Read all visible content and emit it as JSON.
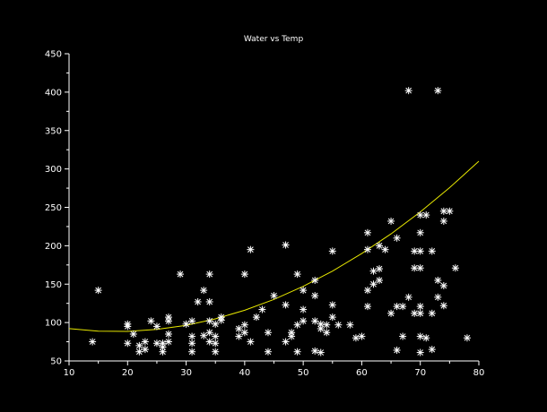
{
  "chart_data": {
    "type": "scatter",
    "title": "Water vs Temp",
    "xlabel": "",
    "ylabel": "",
    "xlim": [
      10,
      80
    ],
    "ylim": [
      50,
      450
    ],
    "xticks": [
      10,
      20,
      30,
      40,
      50,
      60,
      70,
      80
    ],
    "yticks": [
      50,
      100,
      150,
      200,
      250,
      300,
      350,
      400,
      450
    ],
    "grid": false,
    "colors": {
      "background": "#000000",
      "axes": "#ffffff",
      "points": "#ffffff",
      "fit_line": "#e8e800"
    },
    "points": [
      [
        14,
        75
      ],
      [
        15,
        142
      ],
      [
        20,
        73
      ],
      [
        20,
        95
      ],
      [
        20,
        98
      ],
      [
        21,
        85
      ],
      [
        22,
        62
      ],
      [
        22,
        70
      ],
      [
        23,
        65
      ],
      [
        23,
        75
      ],
      [
        24,
        102
      ],
      [
        25,
        73
      ],
      [
        25,
        95
      ],
      [
        26,
        62
      ],
      [
        26,
        68
      ],
      [
        26,
        73
      ],
      [
        27,
        75
      ],
      [
        27,
        85
      ],
      [
        27,
        102
      ],
      [
        27,
        107
      ],
      [
        29,
        163
      ],
      [
        30,
        98
      ],
      [
        31,
        62
      ],
      [
        31,
        73
      ],
      [
        31,
        82
      ],
      [
        31,
        102
      ],
      [
        32,
        127
      ],
      [
        33,
        83
      ],
      [
        33,
        142
      ],
      [
        34,
        75
      ],
      [
        34,
        87
      ],
      [
        34,
        102
      ],
      [
        34,
        127
      ],
      [
        34,
        163
      ],
      [
        35,
        62
      ],
      [
        35,
        73
      ],
      [
        35,
        82
      ],
      [
        35,
        98
      ],
      [
        36,
        103
      ],
      [
        36,
        107
      ],
      [
        39,
        82
      ],
      [
        39,
        92
      ],
      [
        40,
        87
      ],
      [
        40,
        97
      ],
      [
        40,
        163
      ],
      [
        41,
        75
      ],
      [
        41,
        195
      ],
      [
        42,
        107
      ],
      [
        43,
        117
      ],
      [
        44,
        62
      ],
      [
        44,
        87
      ],
      [
        45,
        135
      ],
      [
        47,
        75
      ],
      [
        47,
        123
      ],
      [
        47,
        201
      ],
      [
        48,
        82
      ],
      [
        48,
        87
      ],
      [
        49,
        97
      ],
      [
        49,
        62
      ],
      [
        49,
        163
      ],
      [
        50,
        102
      ],
      [
        50,
        117
      ],
      [
        50,
        142
      ],
      [
        52,
        155
      ],
      [
        52,
        135
      ],
      [
        52,
        63
      ],
      [
        52,
        102
      ],
      [
        53,
        61
      ],
      [
        53,
        98
      ],
      [
        53,
        92
      ],
      [
        54,
        87
      ],
      [
        54,
        97
      ],
      [
        55,
        193
      ],
      [
        55,
        107
      ],
      [
        55,
        123
      ],
      [
        56,
        97
      ],
      [
        58,
        97
      ],
      [
        59,
        80
      ],
      [
        60,
        82
      ],
      [
        61,
        121
      ],
      [
        61,
        142
      ],
      [
        61,
        195
      ],
      [
        61,
        217
      ],
      [
        62,
        150
      ],
      [
        62,
        167
      ],
      [
        63,
        155
      ],
      [
        63,
        170
      ],
      [
        63,
        200
      ],
      [
        64,
        195
      ],
      [
        65,
        112
      ],
      [
        65,
        232
      ],
      [
        66,
        64
      ],
      [
        66,
        121
      ],
      [
        66,
        210
      ],
      [
        67,
        82
      ],
      [
        67,
        121
      ],
      [
        68,
        133
      ],
      [
        68,
        402
      ],
      [
        69,
        112
      ],
      [
        69,
        171
      ],
      [
        69,
        193
      ],
      [
        70,
        61
      ],
      [
        70,
        82
      ],
      [
        70,
        112
      ],
      [
        70,
        121
      ],
      [
        70,
        171
      ],
      [
        70,
        193
      ],
      [
        70,
        217
      ],
      [
        70,
        240
      ],
      [
        71,
        240
      ],
      [
        71,
        80
      ],
      [
        72,
        65
      ],
      [
        72,
        112
      ],
      [
        72,
        193
      ],
      [
        73,
        133
      ],
      [
        73,
        155
      ],
      [
        73,
        402
      ],
      [
        74,
        122
      ],
      [
        74,
        148
      ],
      [
        74,
        232
      ],
      [
        74,
        245
      ],
      [
        75,
        245
      ],
      [
        76,
        171
      ],
      [
        78,
        80
      ]
    ],
    "fit_line": [
      [
        10,
        92.1
      ],
      [
        15,
        88.8
      ],
      [
        20,
        88.5
      ],
      [
        25,
        91.0
      ],
      [
        30,
        96.4
      ],
      [
        35,
        104.8
      ],
      [
        40,
        116.0
      ],
      [
        45,
        130.1
      ],
      [
        50,
        147.1
      ],
      [
        55,
        167.0
      ],
      [
        60,
        189.8
      ],
      [
        65,
        215.5
      ],
      [
        70,
        244.1
      ],
      [
        75,
        275.6
      ],
      [
        80,
        310.0
      ]
    ]
  }
}
